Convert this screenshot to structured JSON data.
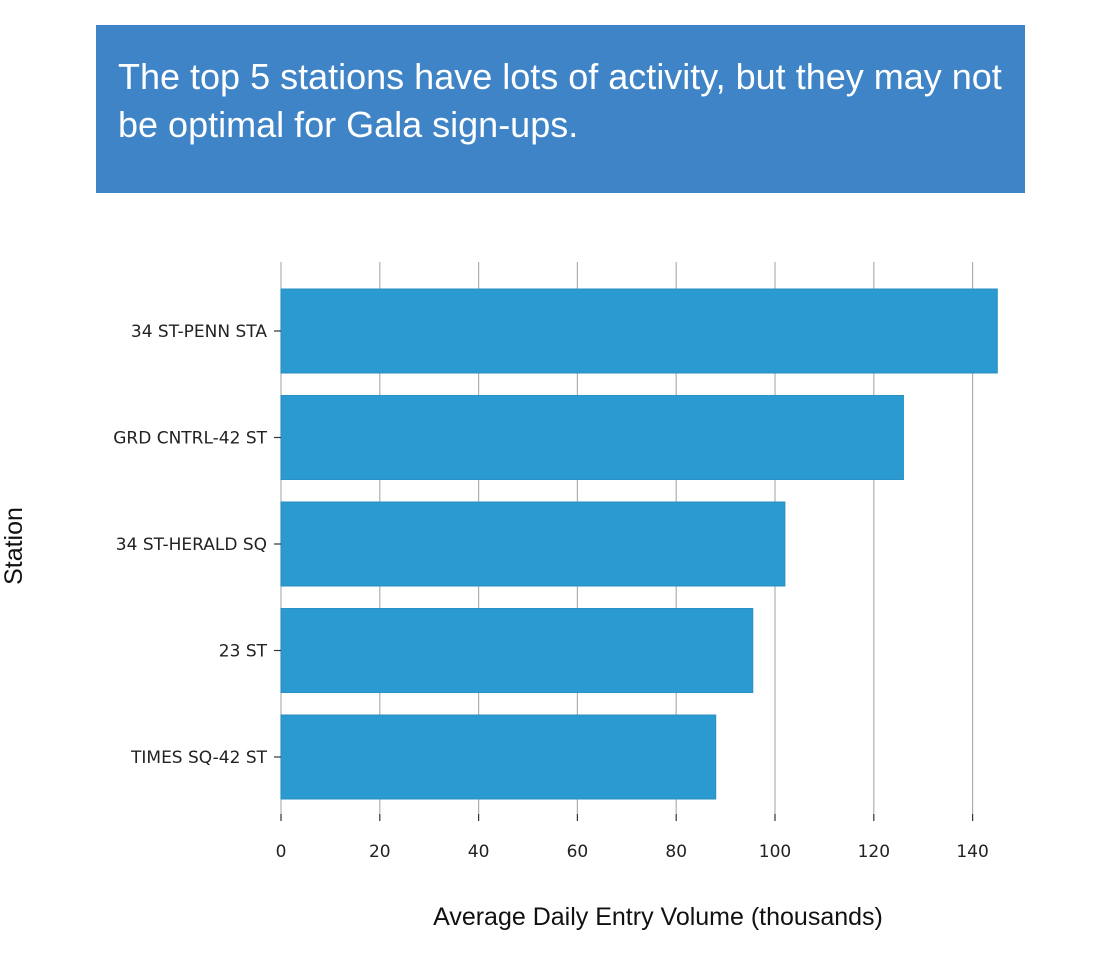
{
  "headline": {
    "text": "The top 5 stations have lots of activity, but they may not be optimal for Gala sign-ups.",
    "background": "#3f84c7"
  },
  "chart_data": {
    "type": "bar",
    "orientation": "horizontal",
    "title": "",
    "xlabel": "Average Daily Entry Volume (thousands)",
    "ylabel": "Station",
    "categories": [
      "34 ST-PENN STA",
      "GRD CNTRL-42 ST",
      "34 ST-HERALD SQ",
      "23 ST",
      "TIMES SQ-42 ST"
    ],
    "values": [
      145,
      126,
      102,
      95.5,
      88
    ],
    "xlim": [
      0,
      150
    ],
    "xticks": [
      0,
      20,
      40,
      60,
      80,
      100,
      120,
      140
    ],
    "grid": "vertical",
    "bar_color": "#2b9ad1",
    "legend": "none"
  }
}
